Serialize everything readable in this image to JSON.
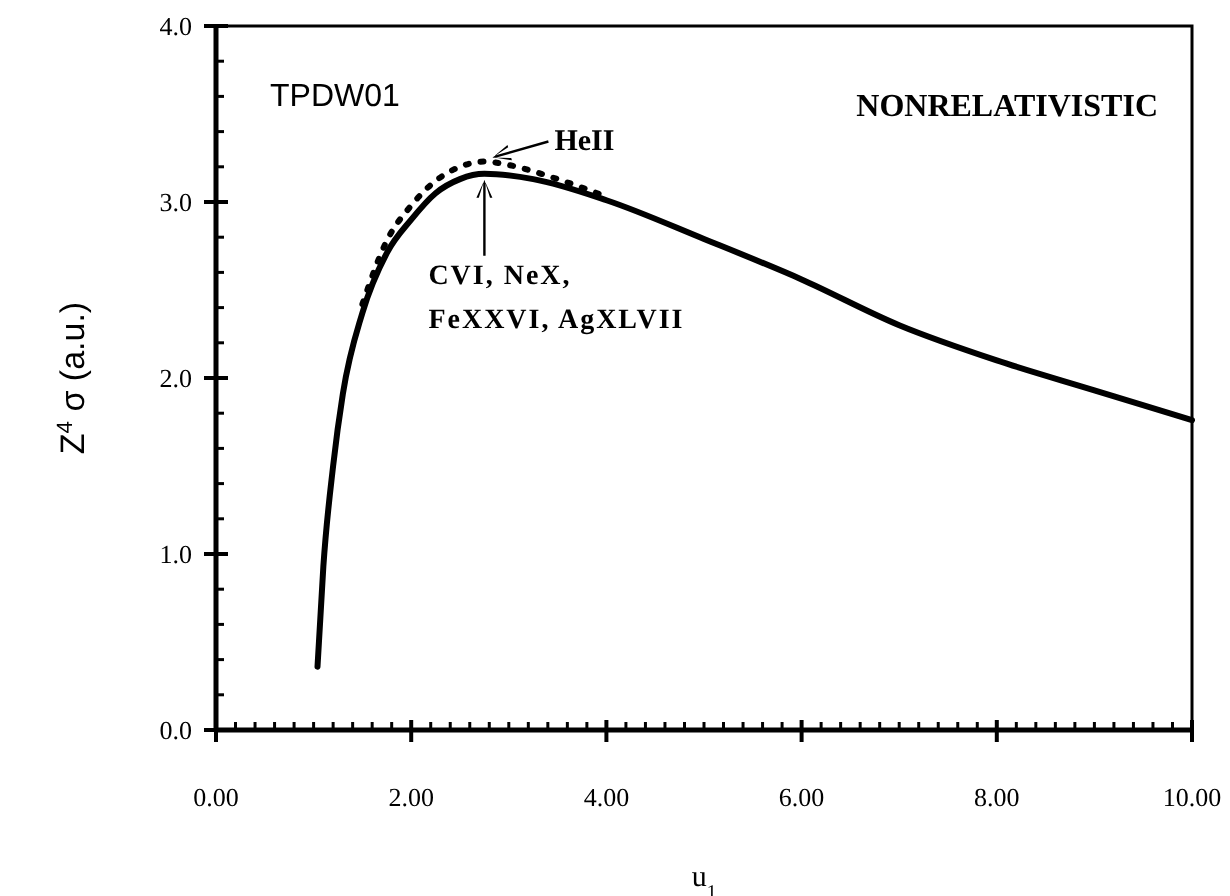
{
  "chart_data": {
    "type": "line",
    "xlabel": "u$_{1}$",
    "ylabel": "Z$^{4}$ σ (a.u.)",
    "xlim": [
      0,
      10
    ],
    "ylim": [
      0,
      4
    ],
    "xticks": [
      {
        "value": 0,
        "label": "0.00"
      },
      {
        "value": 2,
        "label": "2.00"
      },
      {
        "value": 4,
        "label": "4.00"
      },
      {
        "value": 6,
        "label": "6.00"
      },
      {
        "value": 8,
        "label": "8.00"
      },
      {
        "value": 10,
        "label": "10.00"
      }
    ],
    "yticks": [
      {
        "value": 0,
        "label": "0.0"
      },
      {
        "value": 1,
        "label": "1.0"
      },
      {
        "value": 2,
        "label": "2.0"
      },
      {
        "value": 3,
        "label": "3.0"
      },
      {
        "value": 4,
        "label": "4.0"
      }
    ],
    "grid": false,
    "marker": "none",
    "series": [
      {
        "color": "#000000",
        "line_style": "solid",
        "x": [
          1.04,
          1.1,
          1.2,
          1.3,
          1.5,
          1.75,
          2.0,
          2.25,
          2.5,
          2.75,
          3.25,
          4,
          5,
          6,
          7,
          8,
          9,
          10
        ],
        "values": [
          0.36,
          0.93,
          1.5,
          1.91,
          2.37,
          2.71,
          2.9,
          3.05,
          3.13,
          3.16,
          3.13,
          3.01,
          2.79,
          2.56,
          2.3,
          2.1,
          1.93,
          1.76
        ]
      },
      {
        "color": "#000000",
        "line_style": "dotted",
        "x": [
          1.5,
          1.75,
          2.0,
          2.25,
          2.5,
          2.75,
          3.0,
          3.5,
          4.0
        ],
        "values": [
          2.42,
          2.78,
          2.98,
          3.12,
          3.2,
          3.23,
          3.21,
          3.13,
          3.03
        ]
      }
    ],
    "annotations": [
      "TPDW01",
      "NONRELATIVISTIC",
      "CVI, NeX, FeXXVI, AgXLVII",
      {
        "text": "HeII",
        "x": 2.75,
        "y": 3.23
      }
    ]
  }
}
